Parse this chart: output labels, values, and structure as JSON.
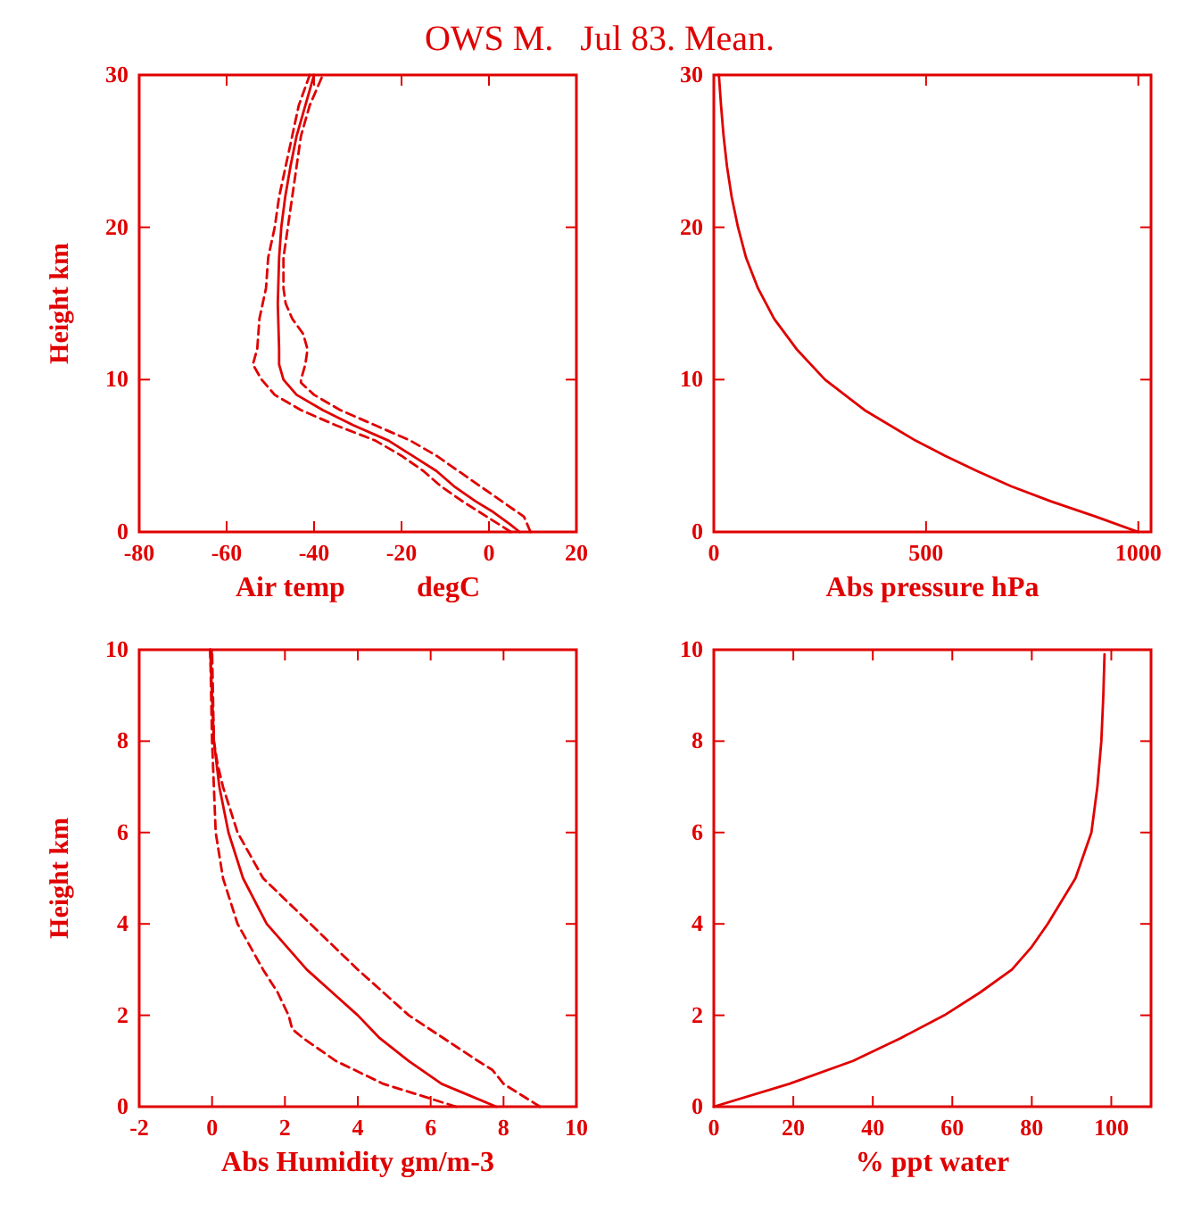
{
  "chart_data": [
    {
      "type": "line",
      "title": "OWS M.   Jul 83. Mean.",
      "xlabel": "Air temp          degC",
      "ylabel": "Height km",
      "xlim": [
        -80,
        20
      ],
      "xticks": [
        -80,
        -60,
        -40,
        -20,
        0,
        20
      ],
      "ylim": [
        0,
        30
      ],
      "yticks": [
        0,
        10,
        20,
        30
      ],
      "series": [
        {
          "color": "#e00000",
          "line_style": "solid",
          "x": [
            7,
            4.8,
            1,
            -3,
            -8,
            -12,
            -17.5,
            -23,
            -31,
            -38,
            -44,
            -47,
            -48,
            -48,
            -48.3,
            -48,
            -47.5,
            -46.6,
            -45.4,
            -44,
            -42,
            -40
          ],
          "values": [
            0,
            0.5,
            1.3,
            2,
            3,
            4,
            5,
            6,
            7,
            8,
            9,
            10,
            11,
            12,
            15,
            18,
            20,
            22,
            24,
            26,
            28,
            30
          ]
        },
        {
          "color": "#e00000",
          "line_style": "dashed",
          "x": [
            5,
            -0.5,
            -6,
            -11,
            -15,
            -20,
            -26,
            -35,
            -43,
            -49,
            -52,
            -54,
            -53,
            -52.5,
            -51,
            -50.5,
            -49,
            -48,
            -46.5,
            -45,
            -43.5,
            -41
          ],
          "values": [
            0,
            1,
            2,
            3,
            4,
            5,
            6,
            7,
            8,
            9,
            10,
            11,
            12,
            14,
            16,
            18,
            20,
            22,
            24,
            26,
            28,
            30
          ]
        },
        {
          "color": "#e00000",
          "line_style": "dashed",
          "x": [
            9.5,
            8,
            3,
            -2,
            -7,
            -12,
            -18,
            -26,
            -34,
            -40,
            -43,
            -43,
            -42,
            -41.5,
            -42.5,
            -45,
            -46.5,
            -47,
            -47,
            -46,
            -45,
            -44,
            -43,
            -41,
            -38
          ],
          "values": [
            0,
            1,
            2,
            3,
            4,
            5,
            6,
            7,
            8,
            9,
            9.8,
            10,
            11,
            12,
            13,
            14,
            15,
            16,
            18,
            20,
            22,
            24,
            26,
            28,
            30
          ]
        }
      ]
    },
    {
      "type": "line",
      "xlabel": "Abs pressure hPa",
      "xlim": [
        0,
        1030
      ],
      "xticks": [
        0,
        500,
        1000
      ],
      "ylim": [
        0,
        30
      ],
      "yticks": [
        0,
        10,
        20,
        30
      ],
      "series": [
        {
          "color": "#e00000",
          "line_style": "solid",
          "x": [
            1000,
            900,
            795,
            700,
            620,
            545,
            475,
            355,
            262,
            195,
            142,
            104,
            76,
            57,
            42,
            31,
            23,
            17,
            12
          ],
          "values": [
            0,
            1,
            2,
            3,
            4,
            5,
            6,
            8,
            10,
            12,
            14,
            16,
            18,
            20,
            22,
            24,
            26,
            28,
            30
          ]
        }
      ]
    },
    {
      "type": "line",
      "xlabel": "Abs Humidity gm/m-3",
      "ylabel": "Height km",
      "xlim": [
        -2,
        10
      ],
      "xticks": [
        -2,
        0,
        2,
        4,
        6,
        8,
        10
      ],
      "ylim": [
        0,
        10
      ],
      "yticks": [
        0,
        2,
        4,
        6,
        8,
        10
      ],
      "series": [
        {
          "color": "#e00000",
          "line_style": "solid",
          "x": [
            7.8,
            6.9,
            6.3,
            5.4,
            4.6,
            4,
            3.3,
            2.6,
            1.5,
            0.85,
            0.45,
            0.2,
            0.05,
            0,
            -0.05
          ],
          "values": [
            0,
            0.3,
            0.5,
            1,
            1.5,
            2,
            2.5,
            3,
            4,
            5,
            6,
            7,
            8,
            9,
            10
          ]
        },
        {
          "color": "#e00000",
          "line_style": "dashed",
          "x": [
            6.7,
            5.5,
            4.7,
            3.4,
            2.5,
            2.2,
            2.1,
            1.8,
            1.4,
            0.7,
            0.3,
            0.1,
            0.05,
            0,
            -0.05
          ],
          "values": [
            0,
            0.3,
            0.5,
            1,
            1.5,
            1.7,
            2,
            2.5,
            3,
            4,
            5,
            6,
            7,
            8,
            10
          ]
        },
        {
          "color": "#e00000",
          "line_style": "dashed",
          "x": [
            9,
            8,
            7.7,
            7.3,
            5.4,
            4,
            2.7,
            1.4,
            0.7,
            0.3,
            0.15,
            0.05,
            0
          ],
          "values": [
            0,
            0.5,
            0.8,
            1,
            2,
            3,
            4,
            5,
            6,
            7,
            7.5,
            8,
            10
          ]
        }
      ]
    },
    {
      "type": "line",
      "xlabel": "% ppt water",
      "xlim": [
        0,
        110
      ],
      "xticks": [
        0,
        20,
        40,
        60,
        80,
        100
      ],
      "ylim": [
        0,
        10
      ],
      "yticks": [
        0,
        2,
        4,
        6,
        8,
        10
      ],
      "series": [
        {
          "color": "#e00000",
          "line_style": "solid",
          "x": [
            0,
            19,
            35,
            47,
            58,
            67,
            75,
            80,
            84,
            91,
            95,
            96.5,
            97.5,
            98,
            98.3
          ],
          "values": [
            0,
            0.5,
            1,
            1.5,
            2,
            2.5,
            3,
            3.5,
            4,
            5,
            6,
            7,
            8,
            9,
            9.9
          ]
        }
      ]
    }
  ]
}
